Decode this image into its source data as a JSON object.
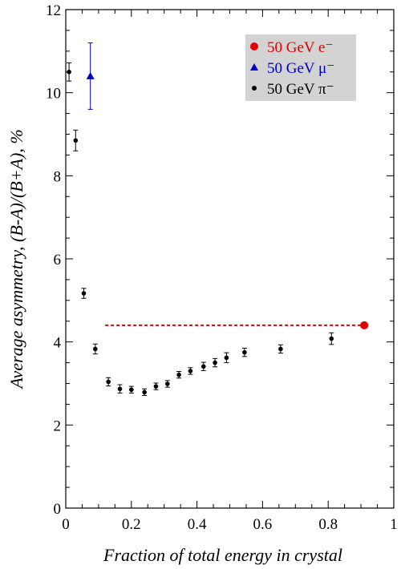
{
  "chart_data": {
    "type": "scatter",
    "xlabel": "Fraction of total energy in crystal",
    "ylabel": "Average asymmetry, (B-A)/(B+A),  %",
    "xlim": [
      0,
      1
    ],
    "ylim": [
      0,
      12
    ],
    "xticks": [
      0,
      0.2,
      0.4,
      0.6,
      0.8,
      1
    ],
    "xtick_labels": [
      "0",
      "0.2",
      "0.4",
      "0.6",
      "0.8",
      "1"
    ],
    "yticks": [
      0,
      2,
      4,
      6,
      8,
      10,
      12
    ],
    "ytick_labels": [
      "0",
      "2",
      "4",
      "6",
      "8",
      "10",
      "12"
    ],
    "grid": false,
    "legend_position": "top-right",
    "series": [
      {
        "name": "50 GeV e⁻",
        "color": "#e00000",
        "marker": "circle",
        "points": [
          {
            "x": 0.91,
            "y": 4.4,
            "err": 0
          }
        ]
      },
      {
        "name": "50 GeV μ⁻",
        "color": "#0000c8",
        "marker": "triangle",
        "points": [
          {
            "x": 0.075,
            "y": 10.4,
            "err": 0.8
          }
        ]
      },
      {
        "name": "50 GeV π⁻",
        "color": "#000000",
        "marker": "dot",
        "points": [
          {
            "x": 0.01,
            "y": 10.5,
            "err": 0.22
          },
          {
            "x": 0.03,
            "y": 8.85,
            "err": 0.25
          },
          {
            "x": 0.055,
            "y": 5.17,
            "err": 0.12
          },
          {
            "x": 0.09,
            "y": 3.83,
            "err": 0.12
          },
          {
            "x": 0.13,
            "y": 3.04,
            "err": 0.1
          },
          {
            "x": 0.165,
            "y": 2.87,
            "err": 0.1
          },
          {
            "x": 0.2,
            "y": 2.85,
            "err": 0.08
          },
          {
            "x": 0.24,
            "y": 2.79,
            "err": 0.08
          },
          {
            "x": 0.275,
            "y": 2.93,
            "err": 0.08
          },
          {
            "x": 0.31,
            "y": 2.99,
            "err": 0.08
          },
          {
            "x": 0.345,
            "y": 3.21,
            "err": 0.08
          },
          {
            "x": 0.38,
            "y": 3.3,
            "err": 0.08
          },
          {
            "x": 0.42,
            "y": 3.41,
            "err": 0.1
          },
          {
            "x": 0.455,
            "y": 3.5,
            "err": 0.1
          },
          {
            "x": 0.49,
            "y": 3.62,
            "err": 0.12
          },
          {
            "x": 0.545,
            "y": 3.75,
            "err": 0.1
          },
          {
            "x": 0.655,
            "y": 3.83,
            "err": 0.1
          },
          {
            "x": 0.81,
            "y": 4.08,
            "err": 0.14
          }
        ]
      }
    ],
    "reference_line": {
      "x_start": 0.12,
      "x_end": 0.91,
      "y": 4.4,
      "color": "#e00000",
      "style": "dashed"
    }
  }
}
